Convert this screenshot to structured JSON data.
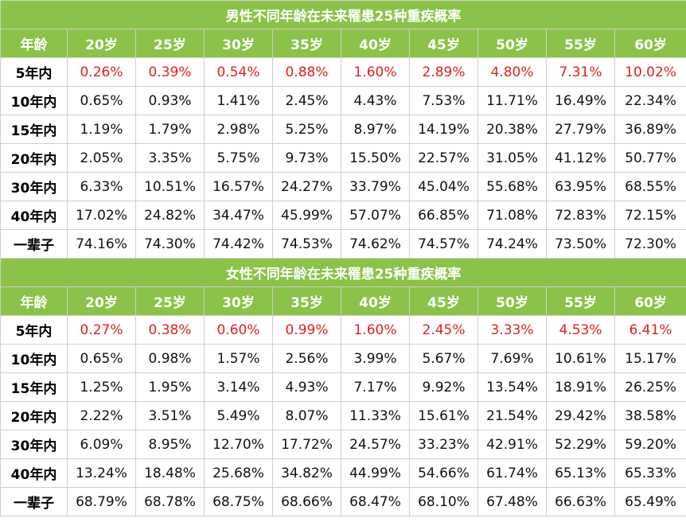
{
  "tables": [
    {
      "title": "男性不同年龄在未来罹患25种重疾概率",
      "header": [
        "年龄",
        "20岁",
        "25岁",
        "30岁",
        "35岁",
        "40岁",
        "45岁",
        "50岁",
        "55岁",
        "60岁"
      ],
      "rows": [
        {
          "label": "5年内",
          "highlight": true,
          "values": [
            "0.26%",
            "0.39%",
            "0.54%",
            "0.88%",
            "1.60%",
            "2.89%",
            "4.80%",
            "7.31%",
            "10.02%"
          ]
        },
        {
          "label": "10年内",
          "highlight": false,
          "values": [
            "0.65%",
            "0.93%",
            "1.41%",
            "2.45%",
            "4.43%",
            "7.53%",
            "11.71%",
            "16.49%",
            "22.34%"
          ]
        },
        {
          "label": "15年内",
          "highlight": false,
          "values": [
            "1.19%",
            "1.79%",
            "2.98%",
            "5.25%",
            "8.97%",
            "14.19%",
            "20.38%",
            "27.79%",
            "36.89%"
          ]
        },
        {
          "label": "20年内",
          "highlight": false,
          "values": [
            "2.05%",
            "3.35%",
            "5.75%",
            "9.73%",
            "15.50%",
            "22.57%",
            "31.05%",
            "41.12%",
            "50.77%"
          ]
        },
        {
          "label": "30年内",
          "highlight": false,
          "values": [
            "6.33%",
            "10.51%",
            "16.57%",
            "24.27%",
            "33.79%",
            "45.04%",
            "55.68%",
            "63.95%",
            "68.55%"
          ]
        },
        {
          "label": "40年内",
          "highlight": false,
          "values": [
            "17.02%",
            "24.82%",
            "34.47%",
            "45.99%",
            "57.07%",
            "66.85%",
            "71.08%",
            "72.83%",
            "72.15%"
          ]
        },
        {
          "label": "一辈子",
          "highlight": false,
          "values": [
            "74.16%",
            "74.30%",
            "74.42%",
            "74.53%",
            "74.62%",
            "74.57%",
            "74.24%",
            "73.50%",
            "72.30%"
          ]
        }
      ]
    },
    {
      "title": "女性不同年龄在未来罹患25种重疾概率",
      "header": [
        "年龄",
        "20岁",
        "25岁",
        "30岁",
        "35岁",
        "40岁",
        "45岁",
        "50岁",
        "55岁",
        "60岁"
      ],
      "rows": [
        {
          "label": "5年内",
          "highlight": true,
          "values": [
            "0.27%",
            "0.38%",
            "0.60%",
            "0.99%",
            "1.60%",
            "2.45%",
            "3.33%",
            "4.53%",
            "6.41%"
          ]
        },
        {
          "label": "10年内",
          "highlight": false,
          "values": [
            "0.65%",
            "0.98%",
            "1.57%",
            "2.56%",
            "3.99%",
            "5.67%",
            "7.69%",
            "10.61%",
            "15.17%"
          ]
        },
        {
          "label": "15年内",
          "highlight": false,
          "values": [
            "1.25%",
            "1.95%",
            "3.14%",
            "4.93%",
            "7.17%",
            "9.92%",
            "13.54%",
            "18.91%",
            "26.25%"
          ]
        },
        {
          "label": "20年内",
          "highlight": false,
          "values": [
            "2.22%",
            "3.51%",
            "5.49%",
            "8.07%",
            "11.33%",
            "15.61%",
            "21.54%",
            "29.42%",
            "38.58%"
          ]
        },
        {
          "label": "30年内",
          "highlight": false,
          "values": [
            "6.09%",
            "8.95%",
            "12.70%",
            "17.72%",
            "24.57%",
            "33.23%",
            "42.91%",
            "52.29%",
            "59.20%"
          ]
        },
        {
          "label": "40年内",
          "highlight": false,
          "values": [
            "13.24%",
            "18.48%",
            "25.68%",
            "34.82%",
            "44.99%",
            "54.66%",
            "61.74%",
            "65.13%",
            "65.33%"
          ]
        },
        {
          "label": "一辈子",
          "highlight": false,
          "values": [
            "68.79%",
            "68.78%",
            "68.75%",
            "68.66%",
            "68.47%",
            "68.10%",
            "67.48%",
            "66.63%",
            "65.49%"
          ]
        }
      ]
    }
  ],
  "colors": {
    "header_bg": "#8bc34a",
    "header_text": "#ffffff",
    "highlight_text": "#e02020",
    "body_text": "#111111"
  }
}
